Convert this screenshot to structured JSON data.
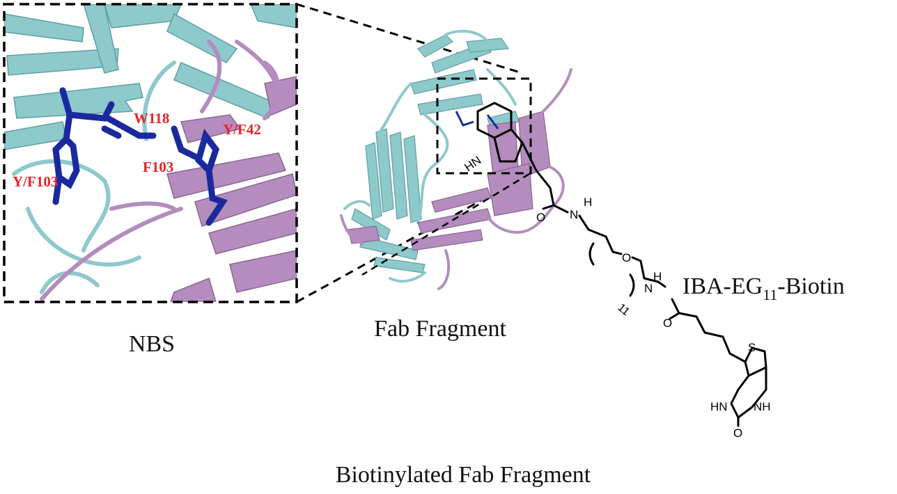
{
  "colors": {
    "heavy_chain": "#8ec9cc",
    "light_chain": "#b48cbd",
    "binding_residues": "#1a2a9e",
    "residue_label": "#e8222a",
    "outline": "#000000"
  },
  "inset": {
    "caption": "NBS",
    "residue_labels": [
      "W118",
      "Y/F42",
      "F103",
      "Y/F103"
    ]
  },
  "fab": {
    "caption": "Fab Fragment"
  },
  "linker": {
    "name_prefix": "IBA-EG",
    "name_subscript": "11",
    "name_suffix": "-Biotin",
    "repeat_count": "11",
    "atoms": {
      "hn_indole": "HN",
      "amide_h1": "H",
      "amide_n1": "N",
      "amide_o1": "O",
      "ether_o": "O",
      "amide_h2": "H",
      "amide_n2": "N",
      "amide_o2": "O",
      "sulfur": "S",
      "hn_left": "HN",
      "nh_right": "NH",
      "urea_o": "O"
    }
  },
  "caption_bottom": "Biotinylated Fab Fragment"
}
